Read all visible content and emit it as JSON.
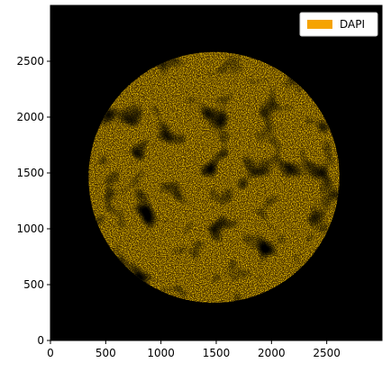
{
  "chart_data": {
    "type": "heatmap",
    "title": "",
    "xlabel": "",
    "ylabel": "",
    "xlim": [
      0,
      3000
    ],
    "ylim": [
      0,
      3000
    ],
    "x_ticks": [
      0,
      500,
      1000,
      1500,
      2000,
      2500
    ],
    "y_ticks": [
      0,
      500,
      1000,
      1500,
      2000,
      2500
    ],
    "background_color": "#000000",
    "grid": false,
    "legend_position": "top-right",
    "series": [
      {
        "name": "DAPI",
        "color": "#f5a300",
        "description_shape": "circular tissue section",
        "center": [
          1480,
          1460
        ],
        "radius": 1135
      }
    ]
  }
}
